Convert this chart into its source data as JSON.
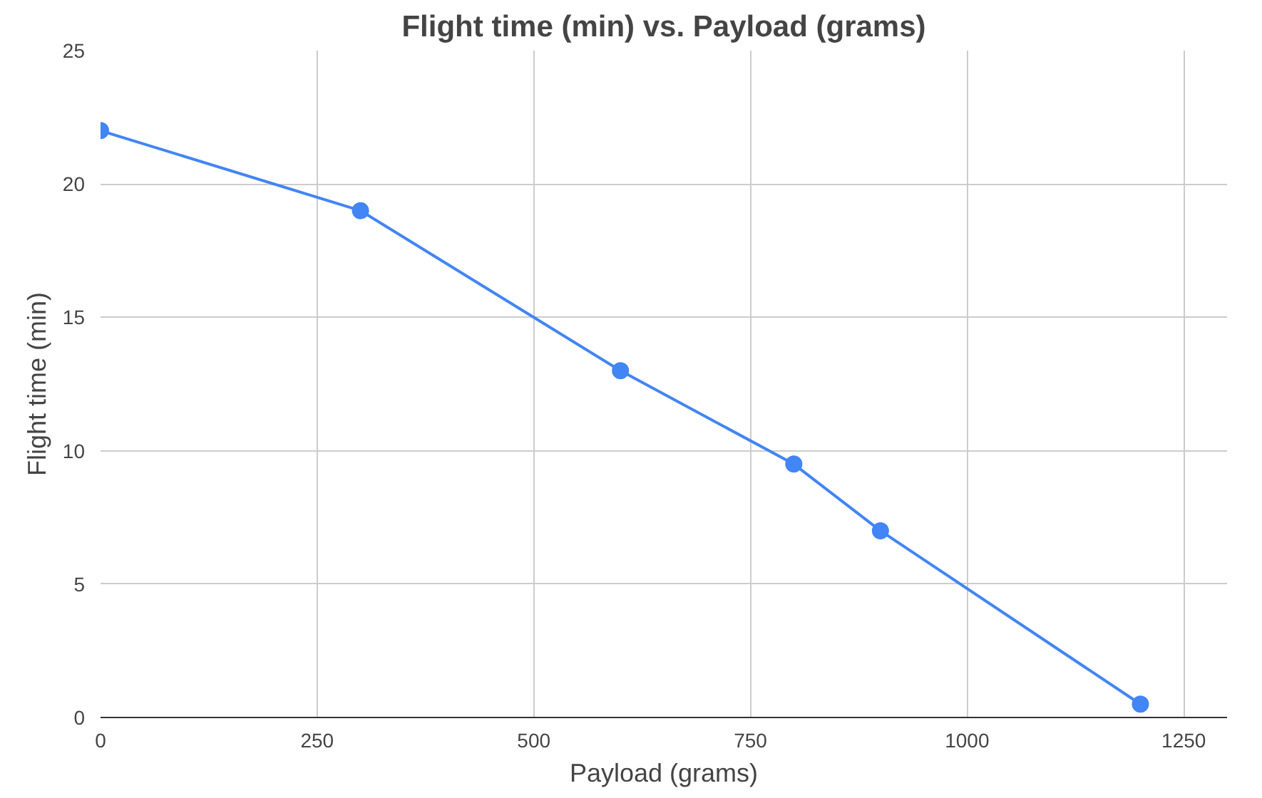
{
  "chart_data": {
    "type": "line",
    "title": "Flight time (min) vs. Payload (grams)",
    "xlabel": "Payload (grams)",
    "ylabel": "Flight time (min)",
    "x": [
      0,
      300,
      600,
      800,
      900,
      1200
    ],
    "series": [
      {
        "color": "#4285f4",
        "values": [
          22,
          19,
          13,
          9.5,
          7,
          0.5
        ]
      }
    ],
    "xlim": [
      0,
      1300
    ],
    "xticks": [
      0,
      250,
      500,
      750,
      1000,
      1250
    ],
    "ylim": [
      0,
      25
    ],
    "yticks": [
      0,
      5,
      10,
      15,
      20,
      25
    ],
    "grid": true,
    "marker": "circle",
    "line_style": "solid"
  }
}
